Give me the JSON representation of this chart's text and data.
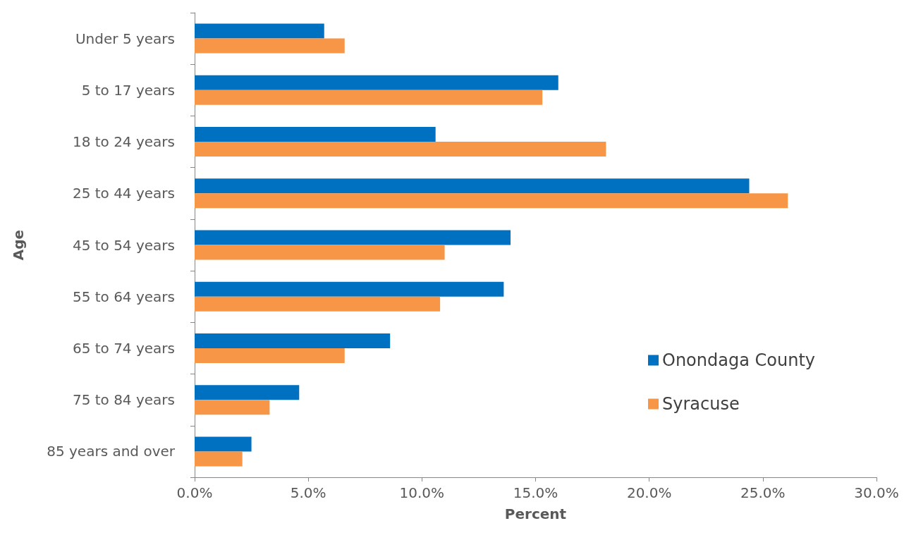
{
  "chart_data": {
    "type": "bar",
    "orientation": "horizontal",
    "xlabel": "Percent",
    "ylabel": "Age",
    "categories": [
      "Under 5 years",
      "5 to 17 years",
      "18 to 24 years",
      "25 to 44 years",
      "45 to 54 years",
      "55 to 64 years",
      "65 to 74 years",
      "75 to 84 years",
      "85 years and over"
    ],
    "series": [
      {
        "name": "Onondaga County",
        "color": "#0070c0",
        "values": [
          5.7,
          16.0,
          10.6,
          24.4,
          13.9,
          13.6,
          8.6,
          4.6,
          2.5
        ]
      },
      {
        "name": "Syracuse",
        "color": "#f79646",
        "values": [
          6.6,
          15.3,
          18.1,
          26.1,
          11.0,
          10.8,
          6.6,
          3.3,
          2.1
        ]
      }
    ],
    "xlim": [
      0,
      30
    ],
    "xticks": [
      {
        "value": 0,
        "label": "0.0%"
      },
      {
        "value": 5,
        "label": "5.0%"
      },
      {
        "value": 10,
        "label": "10.0%"
      },
      {
        "value": 15,
        "label": "15.0%"
      },
      {
        "value": 20,
        "label": "20.0%"
      },
      {
        "value": 25,
        "label": "25.0%"
      },
      {
        "value": 30,
        "label": "30.0%"
      }
    ],
    "grid": false,
    "legend": "bottom right"
  }
}
